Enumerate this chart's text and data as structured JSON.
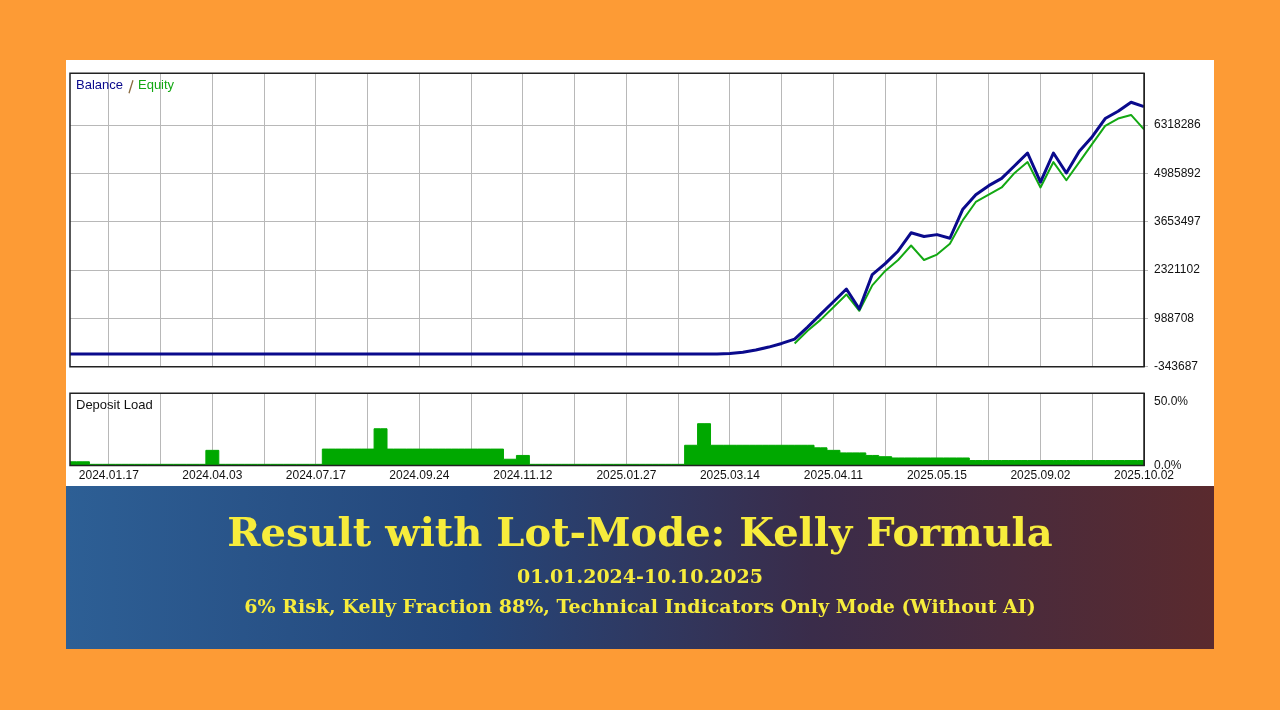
{
  "chart_data": [
    {
      "type": "line",
      "title": "Result with Lot-Mode: Kelly Formula",
      "subtitle": "01.01.2024-10.10.2025",
      "annotations": [
        "6% Risk, Kelly Fraction 88%, Technical Indicators Only Mode (Without AI)"
      ],
      "categories": [
        null,
        null,
        null,
        "2024.01.17",
        null,
        null,
        null,
        null,
        null,
        null,
        null,
        "2024.04.03",
        null,
        null,
        null,
        null,
        null,
        null,
        null,
        "2024.07.17",
        null,
        null,
        null,
        null,
        null,
        null,
        null,
        "2024.09.24",
        null,
        null,
        null,
        null,
        null,
        null,
        null,
        "2024.11.12",
        null,
        null,
        null,
        null,
        null,
        null,
        null,
        "2025.01.27",
        null,
        null,
        null,
        null,
        null,
        null,
        null,
        "2025.03.14",
        null,
        null,
        null,
        null,
        null,
        null,
        null,
        "2025.04.11",
        null,
        null,
        null,
        null,
        null,
        null,
        null,
        "2025.05.15",
        null,
        null,
        null,
        null,
        null,
        null,
        null,
        "2025.09.02",
        null,
        null,
        null,
        null,
        null,
        null,
        null,
        "2025.10.02"
      ],
      "series": [
        {
          "name": "Balance",
          "color": "#0a0a8c",
          "values": [
            10000,
            10000,
            10000,
            10000,
            10000,
            10000,
            10000,
            10000,
            10000,
            10000,
            10000,
            10000,
            10000,
            10000,
            10000,
            10000,
            10000,
            10000,
            10000,
            10000,
            10000,
            10000,
            10000,
            10000,
            10000,
            10000,
            10000,
            10000,
            10000,
            10000,
            10000,
            10000,
            10000,
            10000,
            10000,
            10000,
            10000,
            10000,
            10000,
            10000,
            10000,
            10000,
            10000,
            10000,
            10000,
            10000,
            10000,
            10000,
            10000,
            10000,
            10000,
            20000,
            60000,
            120000,
            200000,
            300000,
            420000,
            750000,
            1100000,
            1450000,
            1800000,
            1250000,
            2200000,
            2500000,
            2850000,
            3350000,
            3250000,
            3300000,
            3200000,
            4000000,
            4400000,
            4650000,
            4850000,
            5200000,
            5550000,
            4750000,
            5550000,
            5000000,
            5600000,
            6000000,
            6500000,
            6700000,
            6950000,
            6830000
          ]
        },
        {
          "name": "Equity",
          "color": "#13a813",
          "values": [
            null,
            null,
            null,
            null,
            null,
            null,
            null,
            null,
            null,
            null,
            null,
            null,
            null,
            null,
            null,
            null,
            null,
            null,
            null,
            null,
            null,
            null,
            null,
            null,
            null,
            null,
            null,
            null,
            null,
            null,
            null,
            null,
            null,
            null,
            null,
            null,
            null,
            null,
            null,
            null,
            null,
            null,
            null,
            null,
            null,
            null,
            null,
            null,
            null,
            null,
            null,
            null,
            null,
            null,
            null,
            null,
            300000,
            650000,
            950000,
            1300000,
            1650000,
            1200000,
            1900000,
            2300000,
            2600000,
            3000000,
            2600000,
            2750000,
            3050000,
            3700000,
            4200000,
            4400000,
            4600000,
            5000000,
            5300000,
            4600000,
            5300000,
            4800000,
            5300000,
            5800000,
            6300000,
            6500000,
            6600000,
            6200000
          ]
        }
      ],
      "ylim": [
        -343687,
        7750000
      ],
      "yticks": [
        -343687,
        988708,
        2321102,
        3653497,
        4985892,
        6318286
      ],
      "grid": true,
      "legend": "top left",
      "tick_labels": "y"
    },
    {
      "type": "area",
      "title": "Deposit Load",
      "categories": [
        null,
        null,
        null,
        "2024.01.17",
        null,
        null,
        null,
        null,
        null,
        null,
        null,
        "2024.04.03",
        null,
        null,
        null,
        null,
        null,
        null,
        null,
        "2024.07.17",
        null,
        null,
        null,
        null,
        null,
        null,
        null,
        "2024.09.24",
        null,
        null,
        null,
        null,
        null,
        null,
        null,
        "2024.11.12",
        null,
        null,
        null,
        null,
        null,
        null,
        null,
        "2025.01.27",
        null,
        null,
        null,
        null,
        null,
        null,
        null,
        "2025.03.14",
        null,
        null,
        null,
        null,
        null,
        null,
        null,
        "2025.04.11",
        null,
        null,
        null,
        null,
        null,
        null,
        null,
        "2025.05.15",
        null,
        null,
        null,
        null,
        null,
        null,
        null,
        "2025.09.02",
        null,
        null,
        null,
        null,
        null,
        null,
        null,
        "2025.10.02"
      ],
      "series": [
        {
          "color": "#00a800",
          "values": [
            3,
            3,
            1,
            1,
            1,
            1,
            1,
            1,
            1,
            1,
            1,
            12,
            1,
            1,
            1,
            1,
            1,
            1,
            1,
            1,
            13,
            13,
            13,
            13,
            29,
            13,
            13,
            13,
            13,
            13,
            13,
            13,
            13,
            13,
            5,
            8,
            1,
            1,
            1,
            1,
            1,
            1,
            1,
            1,
            1,
            1,
            1,
            1,
            16,
            33,
            16,
            16,
            16,
            16,
            16,
            16,
            16,
            16,
            14,
            12,
            10,
            10,
            8,
            7,
            6,
            6,
            6,
            6,
            6,
            6,
            4,
            4,
            4,
            4,
            4,
            4,
            4,
            4,
            4,
            4,
            4,
            4,
            4,
            4
          ]
        }
      ],
      "ylim": [
        0,
        57
      ],
      "yticks": [
        {
          "value": 0,
          "label": "0.0%"
        },
        {
          "value": 50,
          "label": "50.0%"
        }
      ],
      "grid": "x"
    }
  ]
}
